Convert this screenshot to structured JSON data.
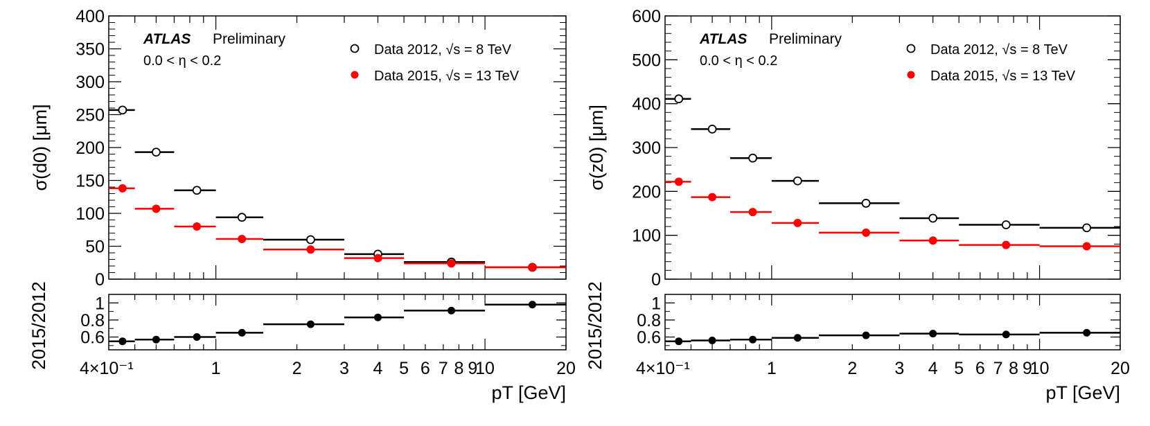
{
  "chart_data": [
    {
      "type": "scatter",
      "label": {
        "atlas": "ATLAS",
        "status": "Preliminary",
        "region": "0.0 < η < 0.2"
      },
      "ylabel": "σ(d0) [μm]",
      "ylim": [
        0,
        400
      ],
      "y_ticks": [
        "0",
        "50",
        "100",
        "150",
        "200",
        "250",
        "300",
        "350",
        "400"
      ],
      "y_tick_values": [
        0,
        50,
        100,
        150,
        200,
        250,
        300,
        350,
        400
      ],
      "xlabel": "pT [GeV]",
      "xscale": "log",
      "xlim": [
        0.4,
        20
      ],
      "x_ticks": [
        "4×10⁻¹",
        "1",
        "2",
        "3",
        "4",
        "5",
        "6",
        "7",
        "8",
        "9",
        "10",
        "20"
      ],
      "x_tick_values": [
        0.4,
        1,
        2,
        3,
        4,
        5,
        6,
        7,
        8,
        9,
        10,
        20
      ],
      "bins": [
        [
          0.4,
          0.5
        ],
        [
          0.5,
          0.7
        ],
        [
          0.7,
          1.0
        ],
        [
          1.0,
          1.5
        ],
        [
          1.5,
          3.0
        ],
        [
          3.0,
          5.0
        ],
        [
          5.0,
          10.0
        ],
        [
          10.0,
          20.0
        ]
      ],
      "x_centers": [
        0.45,
        0.6,
        0.85,
        1.25,
        2.25,
        4.0,
        7.5,
        15.0
      ],
      "series": [
        {
          "name": "Data 2012, √s = 8 TeV",
          "marker": "open-circle",
          "color": "#000000",
          "values": [
            257,
            193,
            135,
            94,
            60,
            38,
            26,
            18
          ]
        },
        {
          "name": "Data 2015, √s = 13 TeV",
          "marker": "filled-circle",
          "color": "#ff0000",
          "values": [
            138,
            107,
            80,
            61,
            45,
            32,
            24,
            18
          ]
        }
      ],
      "ratio": {
        "ylabel": "2015/2012",
        "ylim": [
          0.45,
          1.1
        ],
        "y_ticks": [
          "0.6",
          "0.8",
          "1"
        ],
        "y_tick_values": [
          0.6,
          0.8,
          1.0
        ],
        "values": [
          0.55,
          0.57,
          0.6,
          0.65,
          0.75,
          0.83,
          0.91,
          0.98
        ]
      },
      "legend_position": "top-right"
    },
    {
      "type": "scatter",
      "label": {
        "atlas": "ATLAS",
        "status": "Preliminary",
        "region": "0.0 < η < 0.2"
      },
      "ylabel": "σ(z0) [μm]",
      "ylim": [
        0,
        600
      ],
      "y_ticks": [
        "0",
        "100",
        "200",
        "300",
        "400",
        "500",
        "600"
      ],
      "y_tick_values": [
        0,
        100,
        200,
        300,
        400,
        500,
        600
      ],
      "xlabel": "pT [GeV]",
      "xscale": "log",
      "xlim": [
        0.4,
        20
      ],
      "x_ticks": [
        "4×10⁻¹",
        "1",
        "2",
        "3",
        "4",
        "5",
        "6",
        "7",
        "8",
        "9",
        "10",
        "20"
      ],
      "x_tick_values": [
        0.4,
        1,
        2,
        3,
        4,
        5,
        6,
        7,
        8,
        9,
        10,
        20
      ],
      "bins": [
        [
          0.4,
          0.5
        ],
        [
          0.5,
          0.7
        ],
        [
          0.7,
          1.0
        ],
        [
          1.0,
          1.5
        ],
        [
          1.5,
          3.0
        ],
        [
          3.0,
          5.0
        ],
        [
          5.0,
          10.0
        ],
        [
          10.0,
          20.0
        ]
      ],
      "x_centers": [
        0.45,
        0.6,
        0.85,
        1.25,
        2.25,
        4.0,
        7.5,
        15.0
      ],
      "series": [
        {
          "name": "Data 2012, √s = 8 TeV",
          "marker": "open-circle",
          "color": "#000000",
          "values": [
            411,
            342,
            276,
            224,
            173,
            139,
            124,
            117
          ]
        },
        {
          "name": "Data 2015, √s = 13 TeV",
          "marker": "filled-circle",
          "color": "#ff0000",
          "values": [
            222,
            187,
            153,
            128,
            106,
            88,
            78,
            75
          ]
        }
      ],
      "ratio": {
        "ylabel": "2015/2012",
        "ylim": [
          0.45,
          1.1
        ],
        "y_ticks": [
          "0.6",
          "0.8",
          "1"
        ],
        "y_tick_values": [
          0.6,
          0.8,
          1.0
        ],
        "values": [
          0.55,
          0.56,
          0.57,
          0.59,
          0.62,
          0.64,
          0.63,
          0.65
        ]
      },
      "legend_position": "top-right"
    }
  ]
}
